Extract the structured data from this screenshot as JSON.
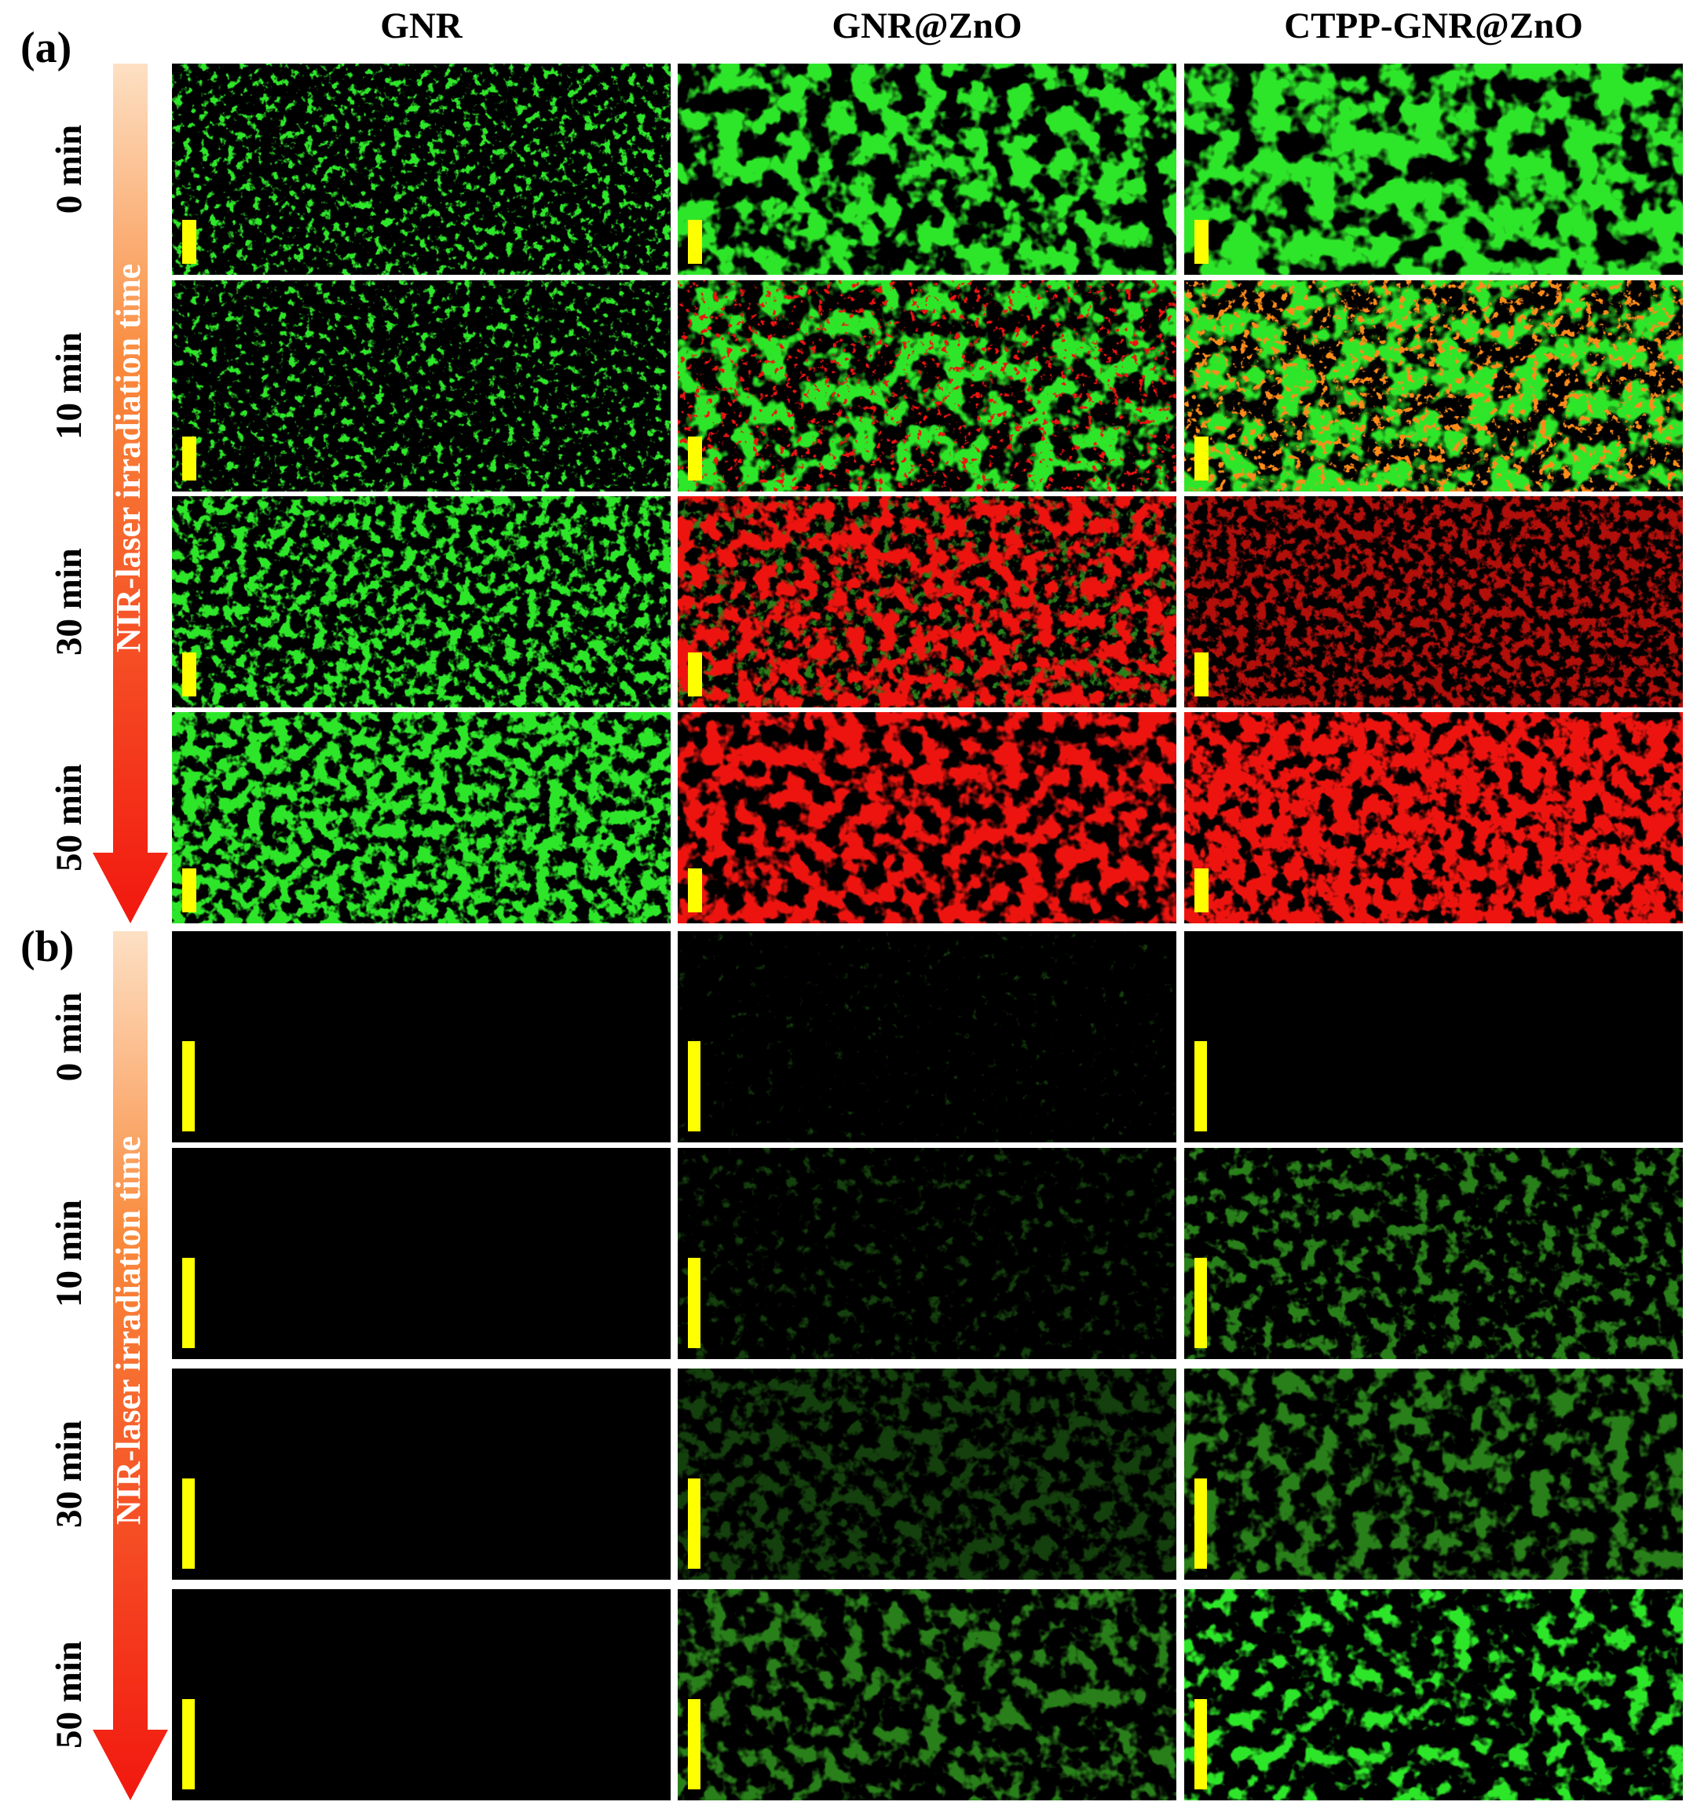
{
  "columns": [
    "GNR",
    "GNR@ZnO",
    "CTPP-GNR@ZnO"
  ],
  "panels": [
    {
      "label": "(a)",
      "arrow_label": "NIR-laser irradiation time",
      "rows": [
        "0 min",
        "10 min",
        "30 min",
        "50 min"
      ]
    },
    {
      "label": "(b)",
      "arrow_label": "NIR-laser irradiation time",
      "rows": [
        "0 min",
        "10 min",
        "30 min",
        "50 min"
      ]
    }
  ]
}
